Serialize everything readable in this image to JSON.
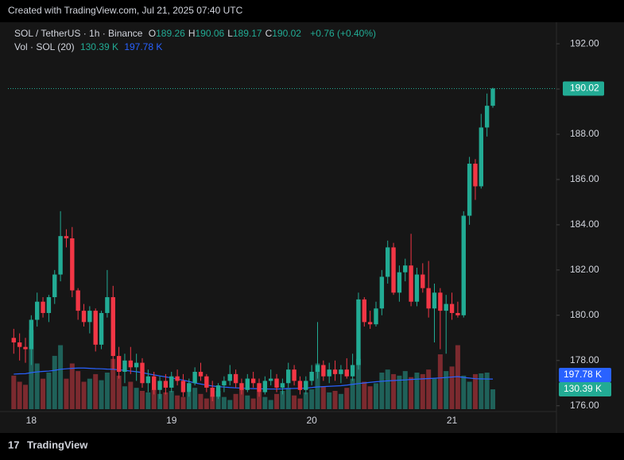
{
  "watermark": "Created with TradingView.com, Jul 21, 2025 07:40 UTC",
  "footer": "TradingView",
  "chart_data": {
    "type": "candlestick",
    "title": "SOL / TetherUS · 1h · Binance",
    "ohlc_labels": [
      "O",
      "H",
      "L",
      "C"
    ],
    "change_label": "+0.76 (+0.40%)",
    "up_color": "#22ab94",
    "down_color": "#f23645",
    "categories": [
      null,
      null,
      null,
      "18",
      null,
      null,
      null,
      null,
      null,
      null,
      null,
      null,
      null,
      null,
      null,
      null,
      null,
      null,
      null,
      null,
      null,
      null,
      null,
      null,
      null,
      null,
      null,
      "19",
      null,
      null,
      null,
      null,
      null,
      null,
      null,
      null,
      null,
      null,
      null,
      null,
      null,
      null,
      null,
      null,
      null,
      null,
      null,
      null,
      null,
      null,
      null,
      "20",
      null,
      null,
      null,
      null,
      null,
      null,
      null,
      null,
      null,
      null,
      null,
      null,
      null,
      null,
      null,
      null,
      null,
      null,
      null,
      null,
      null,
      null,
      null,
      "21",
      null,
      null,
      null,
      null,
      null,
      null,
      null
    ],
    "open": [
      179.0,
      178.8,
      178.6,
      178.5,
      179.8,
      180.6,
      180.1,
      180.8,
      181.8,
      183.5,
      183.4,
      181.1,
      180.2,
      179.7,
      180.2,
      178.7,
      180.1,
      180.8,
      178.2,
      177.5,
      178.0,
      177.7,
      177.9,
      177.0,
      177.3,
      176.7,
      177.1,
      176.8,
      177.3,
      177.1,
      176.6,
      177.0,
      177.5,
      177.3,
      176.8,
      176.4,
      176.9,
      177.1,
      177.4,
      177.0,
      176.7,
      177.2,
      177.0,
      176.6,
      177.1,
      177.2,
      176.8,
      177.0,
      177.6,
      177.1,
      176.7,
      177.1,
      177.5,
      177.8,
      177.3,
      177.6,
      177.4,
      177.6,
      177.3,
      177.8,
      180.7,
      179.7,
      179.6,
      180.3,
      181.7,
      183.0,
      181.0,
      181.9,
      182.2,
      180.6,
      181.8,
      181.2,
      180.3,
      181.0,
      180.2,
      180.5,
      180.1,
      180.0,
      184.4,
      186.7,
      185.7,
      188.3,
      189.26
    ],
    "high": [
      179.4,
      179.2,
      179.0,
      180.0,
      181.0,
      180.8,
      180.9,
      182.0,
      184.6,
      183.8,
      183.9,
      181.2,
      180.5,
      180.4,
      180.3,
      180.2,
      182.0,
      181.3,
      178.6,
      178.3,
      178.6,
      178.3,
      178.1,
      177.6,
      177.5,
      177.3,
      177.4,
      177.5,
      177.6,
      177.4,
      177.2,
      177.7,
      177.9,
      177.4,
      177.1,
      177.0,
      177.3,
      177.8,
      177.6,
      177.2,
      177.4,
      177.5,
      177.2,
      177.3,
      177.6,
      177.4,
      177.2,
      177.9,
      177.8,
      177.3,
      177.3,
      177.8,
      179.7,
      178.0,
      177.9,
      178.0,
      177.8,
      178.1,
      178.3,
      181.0,
      180.8,
      180.2,
      180.6,
      182.0,
      183.3,
      183.2,
      182.2,
      182.5,
      183.6,
      182.1,
      182.3,
      182.4,
      181.4,
      181.2,
      180.9,
      181.0,
      180.6,
      184.6,
      187.0,
      186.9,
      188.9,
      189.8,
      190.06
    ],
    "low": [
      178.3,
      178.0,
      177.9,
      177.8,
      179.5,
      179.9,
      179.7,
      180.5,
      181.5,
      183.0,
      180.8,
      179.8,
      179.5,
      179.2,
      178.4,
      178.5,
      179.9,
      177.6,
      177.2,
      177.0,
      177.4,
      177.1,
      176.8,
      176.6,
      176.5,
      176.3,
      176.5,
      176.6,
      176.9,
      176.4,
      176.4,
      176.9,
      177.1,
      176.6,
      176.2,
      176.3,
      176.6,
      176.9,
      176.8,
      176.5,
      176.6,
      176.8,
      176.4,
      176.5,
      176.9,
      176.6,
      176.5,
      176.8,
      176.9,
      176.5,
      176.5,
      176.9,
      177.2,
      177.1,
      177.0,
      177.1,
      177.0,
      177.2,
      177.1,
      177.6,
      179.5,
      179.4,
      179.5,
      180.0,
      181.4,
      180.9,
      180.6,
      181.5,
      180.4,
      180.4,
      181.0,
      179.9,
      178.8,
      178.5,
      178.3,
      179.8,
      179.9,
      179.9,
      184.0,
      185.1,
      185.6,
      187.9,
      189.17
    ],
    "close": [
      178.8,
      178.6,
      178.5,
      179.8,
      180.6,
      180.1,
      180.8,
      181.8,
      183.5,
      183.4,
      181.1,
      180.2,
      179.7,
      180.2,
      178.7,
      180.1,
      180.8,
      178.2,
      177.5,
      178.0,
      177.7,
      177.9,
      177.0,
      177.3,
      176.7,
      177.1,
      176.8,
      177.3,
      177.1,
      176.6,
      177.0,
      177.5,
      177.3,
      176.8,
      176.4,
      176.9,
      177.1,
      177.4,
      177.0,
      176.7,
      177.2,
      177.0,
      176.6,
      177.1,
      177.2,
      176.8,
      177.0,
      177.6,
      177.1,
      176.7,
      177.1,
      177.5,
      177.8,
      177.3,
      177.6,
      177.4,
      177.6,
      177.3,
      177.8,
      180.7,
      179.7,
      179.6,
      180.3,
      181.7,
      183.0,
      181.0,
      181.9,
      182.2,
      180.6,
      181.8,
      181.2,
      180.3,
      181.0,
      180.2,
      180.5,
      180.1,
      180.0,
      184.4,
      186.7,
      185.7,
      188.3,
      189.26,
      190.02
    ],
    "ylim": [
      175.85,
      192.53
    ],
    "yticks": [
      {
        "value": 176,
        "label": "176.00"
      },
      {
        "value": 178,
        "label": "178.00"
      },
      {
        "value": 180,
        "label": "180.00"
      },
      {
        "value": 182,
        "label": "182.00"
      },
      {
        "value": 184,
        "label": "184.00"
      },
      {
        "value": 186,
        "label": "186.00"
      },
      {
        "value": 188,
        "label": "188.00"
      },
      {
        "value": 190,
        "label": "190.00"
      },
      {
        "value": 192,
        "label": "192.00"
      }
    ],
    "volume": {
      "name": "Vol · SOL (20)",
      "up_color": "#1f6159",
      "down_color": "#7c2a2f",
      "ylim": [
        0,
        600
      ],
      "values": [
        220,
        180,
        160,
        520,
        300,
        200,
        240,
        350,
        420,
        200,
        300,
        250,
        180,
        200,
        230,
        190,
        240,
        330,
        220,
        150,
        180,
        140,
        120,
        110,
        130,
        100,
        110,
        120,
        90,
        80,
        110,
        140,
        100,
        70,
        90,
        120,
        80,
        60,
        100,
        130,
        90,
        70,
        110,
        80,
        60,
        100,
        120,
        140,
        90,
        70,
        110,
        130,
        300,
        150,
        110,
        120,
        100,
        140,
        200,
        330,
        180,
        150,
        170,
        240,
        260,
        230,
        220,
        250,
        210,
        240,
        230,
        260,
        200,
        360,
        250,
        280,
        420,
        220,
        180,
        230,
        235,
        240,
        130.39
      ],
      "last_label": "130.39 K",
      "label_color": "#22ab94"
    },
    "volume_ma": {
      "color": "#2962ff",
      "last_label": "197.78 K",
      "values": [
        230,
        232,
        233,
        240,
        245,
        248,
        250,
        255,
        262,
        265,
        268,
        270,
        270,
        268,
        266,
        265,
        263,
        262,
        258,
        255,
        250,
        246,
        240,
        232,
        225,
        218,
        212,
        205,
        198,
        190,
        182,
        172,
        165,
        158,
        152,
        148,
        145,
        142,
        140,
        138,
        136,
        135,
        134,
        133,
        132,
        132,
        133,
        135,
        136,
        137,
        138,
        142,
        146,
        148,
        150,
        152,
        154,
        158,
        163,
        168,
        172,
        176,
        180,
        183,
        186,
        188,
        190,
        192,
        195,
        197,
        199,
        201,
        203,
        205,
        208,
        211,
        214,
        208,
        204,
        200,
        199,
        198,
        197.78
      ]
    }
  }
}
